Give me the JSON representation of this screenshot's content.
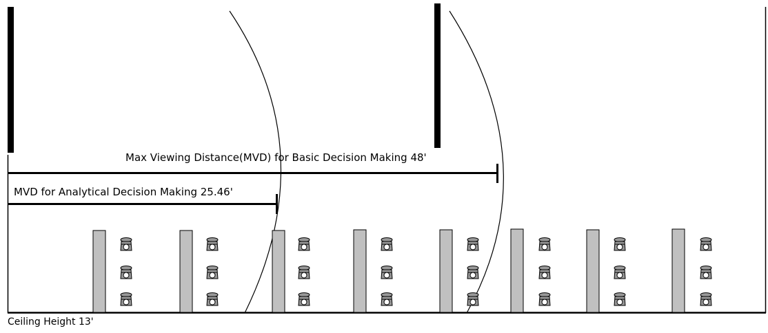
{
  "labels": {
    "mvd_basic": "Max Viewing Distance(MVD) for Basic Decision Making 48'",
    "mvd_analytical": "MVD for Analytical Decision Making 25.46'",
    "ceiling_height": "Ceiling Height 13'"
  },
  "room": {
    "table_count": 8,
    "seats_per_row": 3
  },
  "colors": {
    "line": "#000000",
    "table_fill": "#c0c0c0",
    "chair_fill": "#999999",
    "background": "#ffffff"
  }
}
